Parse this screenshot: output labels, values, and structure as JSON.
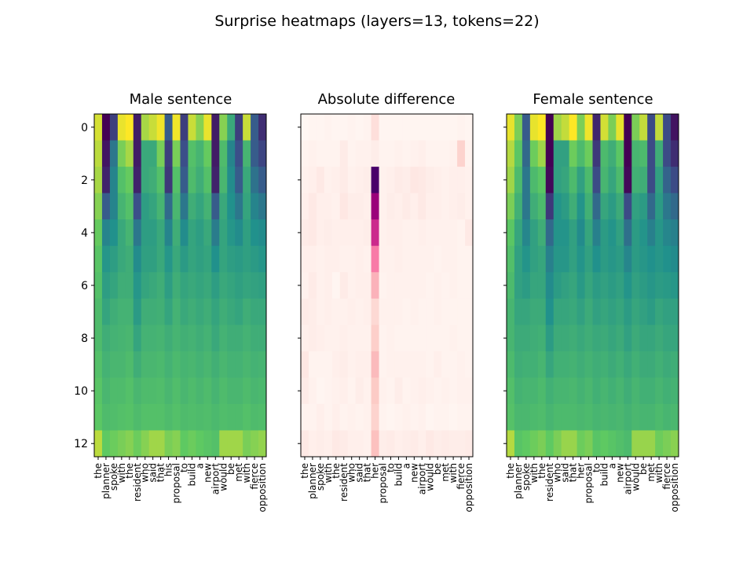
{
  "figure": {
    "suptitle": "Surprise heatmaps (layers=13, tokens=22)"
  },
  "chart_data": [
    {
      "type": "heatmap",
      "title": "Male sentence",
      "colormap": "viridis",
      "xticklabels": [
        "the",
        "planner",
        "spoke",
        "with",
        "the",
        "resident",
        "who",
        "said",
        "that",
        "his",
        "proposal",
        "to",
        "build",
        "a",
        "new",
        "airport",
        "would",
        "be",
        "met",
        "with",
        "fierce",
        "opposition"
      ],
      "yticks": [
        0,
        2,
        4,
        6,
        8,
        10,
        12
      ],
      "n_rows": 13,
      "n_cols": 22,
      "values": [
        [
          0.92,
          0.02,
          0.2,
          0.95,
          0.98,
          0.1,
          0.85,
          0.9,
          0.96,
          0.3,
          0.96,
          0.2,
          0.9,
          0.8,
          0.95,
          0.1,
          0.8,
          0.6,
          0.2,
          0.9,
          0.3,
          0.15
        ],
        [
          0.88,
          0.08,
          0.4,
          0.78,
          0.85,
          0.1,
          0.6,
          0.6,
          0.78,
          0.2,
          0.78,
          0.25,
          0.7,
          0.65,
          0.75,
          0.1,
          0.68,
          0.45,
          0.25,
          0.65,
          0.3,
          0.22
        ],
        [
          0.85,
          0.12,
          0.45,
          0.7,
          0.75,
          0.12,
          0.6,
          0.62,
          0.7,
          0.18,
          0.7,
          0.3,
          0.68,
          0.62,
          0.7,
          0.12,
          0.66,
          0.48,
          0.3,
          0.6,
          0.38,
          0.3
        ],
        [
          0.8,
          0.3,
          0.45,
          0.65,
          0.7,
          0.25,
          0.55,
          0.58,
          0.65,
          0.35,
          0.66,
          0.4,
          0.62,
          0.58,
          0.64,
          0.3,
          0.6,
          0.5,
          0.4,
          0.58,
          0.45,
          0.4
        ],
        [
          0.75,
          0.45,
          0.5,
          0.6,
          0.65,
          0.4,
          0.55,
          0.55,
          0.6,
          0.45,
          0.62,
          0.48,
          0.58,
          0.55,
          0.6,
          0.42,
          0.58,
          0.52,
          0.48,
          0.56,
          0.5,
          0.48
        ],
        [
          0.72,
          0.52,
          0.55,
          0.6,
          0.62,
          0.48,
          0.56,
          0.56,
          0.6,
          0.52,
          0.6,
          0.54,
          0.58,
          0.56,
          0.58,
          0.5,
          0.58,
          0.55,
          0.54,
          0.56,
          0.54,
          0.52
        ],
        [
          0.7,
          0.55,
          0.58,
          0.62,
          0.62,
          0.52,
          0.58,
          0.6,
          0.62,
          0.55,
          0.62,
          0.58,
          0.6,
          0.58,
          0.6,
          0.55,
          0.6,
          0.58,
          0.56,
          0.58,
          0.57,
          0.56
        ],
        [
          0.68,
          0.58,
          0.62,
          0.64,
          0.64,
          0.54,
          0.62,
          0.62,
          0.63,
          0.58,
          0.64,
          0.6,
          0.62,
          0.6,
          0.62,
          0.58,
          0.62,
          0.6,
          0.58,
          0.62,
          0.6,
          0.6
        ],
        [
          0.68,
          0.62,
          0.64,
          0.65,
          0.66,
          0.58,
          0.64,
          0.64,
          0.65,
          0.62,
          0.65,
          0.63,
          0.64,
          0.62,
          0.64,
          0.6,
          0.64,
          0.62,
          0.62,
          0.64,
          0.62,
          0.62
        ],
        [
          0.7,
          0.64,
          0.66,
          0.66,
          0.68,
          0.62,
          0.66,
          0.66,
          0.67,
          0.64,
          0.67,
          0.65,
          0.66,
          0.64,
          0.66,
          0.63,
          0.66,
          0.64,
          0.64,
          0.66,
          0.64,
          0.65
        ],
        [
          0.72,
          0.66,
          0.68,
          0.68,
          0.7,
          0.66,
          0.68,
          0.68,
          0.69,
          0.66,
          0.69,
          0.66,
          0.68,
          0.66,
          0.68,
          0.65,
          0.68,
          0.66,
          0.66,
          0.68,
          0.66,
          0.67
        ],
        [
          0.73,
          0.68,
          0.69,
          0.7,
          0.71,
          0.68,
          0.7,
          0.7,
          0.7,
          0.68,
          0.7,
          0.68,
          0.69,
          0.68,
          0.69,
          0.67,
          0.69,
          0.68,
          0.68,
          0.7,
          0.68,
          0.69
        ],
        [
          0.88,
          0.74,
          0.76,
          0.78,
          0.8,
          0.76,
          0.8,
          0.84,
          0.84,
          0.78,
          0.8,
          0.74,
          0.76,
          0.74,
          0.72,
          0.7,
          0.84,
          0.84,
          0.84,
          0.78,
          0.8,
          0.82
        ]
      ]
    },
    {
      "type": "heatmap",
      "title": "Absolute difference",
      "colormap": "RdPu",
      "xticklabels": [
        "the",
        "planner",
        "spoke",
        "with",
        "the",
        "resident",
        "who",
        "said",
        "that",
        "her",
        "proposal",
        "to",
        "build",
        "a",
        "new",
        "airport",
        "would",
        "be",
        "met",
        "with",
        "fierce",
        "opposition"
      ],
      "n_rows": 13,
      "n_cols": 22,
      "values": [
        [
          0.0,
          0.01,
          0.01,
          0.02,
          0.01,
          0.01,
          0.02,
          0.01,
          0.02,
          0.12,
          0.01,
          0.01,
          0.01,
          0.01,
          0.01,
          0.01,
          0.01,
          0.01,
          0.01,
          0.01,
          0.02,
          0.01
        ],
        [
          0.02,
          0.03,
          0.02,
          0.02,
          0.02,
          0.06,
          0.02,
          0.03,
          0.03,
          0.05,
          0.02,
          0.02,
          0.03,
          0.02,
          0.03,
          0.04,
          0.02,
          0.02,
          0.02,
          0.03,
          0.18,
          0.02
        ],
        [
          0.03,
          0.04,
          0.07,
          0.03,
          0.04,
          0.06,
          0.03,
          0.04,
          0.05,
          1.0,
          0.03,
          0.04,
          0.06,
          0.05,
          0.08,
          0.07,
          0.05,
          0.04,
          0.03,
          0.04,
          0.04,
          0.03
        ],
        [
          0.04,
          0.07,
          0.04,
          0.04,
          0.03,
          0.08,
          0.05,
          0.05,
          0.04,
          0.8,
          0.03,
          0.05,
          0.04,
          0.06,
          0.04,
          0.07,
          0.04,
          0.04,
          0.03,
          0.04,
          0.05,
          0.03
        ],
        [
          0.06,
          0.07,
          0.04,
          0.05,
          0.04,
          0.04,
          0.04,
          0.04,
          0.05,
          0.65,
          0.03,
          0.04,
          0.04,
          0.03,
          0.03,
          0.04,
          0.03,
          0.03,
          0.03,
          0.03,
          0.02,
          0.07
        ],
        [
          0.04,
          0.04,
          0.03,
          0.04,
          0.04,
          0.03,
          0.03,
          0.04,
          0.03,
          0.45,
          0.03,
          0.03,
          0.04,
          0.03,
          0.03,
          0.03,
          0.03,
          0.02,
          0.03,
          0.03,
          0.02,
          0.02
        ],
        [
          0.03,
          0.06,
          0.03,
          0.04,
          0.01,
          0.06,
          0.03,
          0.04,
          0.04,
          0.3,
          0.02,
          0.03,
          0.03,
          0.03,
          0.03,
          0.03,
          0.02,
          0.03,
          0.02,
          0.03,
          0.02,
          0.02
        ],
        [
          0.06,
          0.05,
          0.03,
          0.04,
          0.03,
          0.03,
          0.04,
          0.03,
          0.04,
          0.15,
          0.03,
          0.03,
          0.03,
          0.02,
          0.03,
          0.02,
          0.02,
          0.03,
          0.02,
          0.02,
          0.02,
          0.02
        ],
        [
          0.04,
          0.05,
          0.04,
          0.03,
          0.03,
          0.04,
          0.03,
          0.03,
          0.03,
          0.2,
          0.02,
          0.03,
          0.02,
          0.02,
          0.02,
          0.02,
          0.02,
          0.02,
          0.02,
          0.03,
          0.02,
          0.02
        ],
        [
          0.08,
          0.02,
          0.02,
          0.02,
          0.04,
          0.05,
          0.03,
          0.04,
          0.04,
          0.28,
          0.02,
          0.03,
          0.03,
          0.03,
          0.03,
          0.03,
          0.02,
          0.04,
          0.02,
          0.02,
          0.03,
          0.02
        ],
        [
          0.06,
          0.03,
          0.01,
          0.02,
          0.03,
          0.04,
          0.02,
          0.05,
          0.03,
          0.22,
          0.03,
          0.02,
          0.05,
          0.02,
          0.03,
          0.04,
          0.03,
          0.02,
          0.03,
          0.02,
          0.03,
          0.03
        ],
        [
          0.02,
          0.02,
          0.04,
          0.02,
          0.04,
          0.02,
          0.03,
          0.02,
          0.03,
          0.18,
          0.02,
          0.01,
          0.02,
          0.03,
          0.02,
          0.03,
          0.01,
          0.02,
          0.02,
          0.01,
          0.02,
          0.02
        ],
        [
          0.07,
          0.04,
          0.05,
          0.04,
          0.07,
          0.06,
          0.04,
          0.04,
          0.03,
          0.26,
          0.05,
          0.06,
          0.04,
          0.05,
          0.06,
          0.04,
          0.07,
          0.05,
          0.06,
          0.05,
          0.05,
          0.06
        ]
      ]
    },
    {
      "type": "heatmap",
      "title": "Female sentence",
      "colormap": "viridis",
      "xticklabels": [
        "the",
        "planner",
        "spoke",
        "with",
        "the",
        "resident",
        "who",
        "said",
        "that",
        "her",
        "proposal",
        "to",
        "build",
        "a",
        "new",
        "airport",
        "would",
        "be",
        "met",
        "with",
        "fierce",
        "opposition"
      ],
      "n_rows": 13,
      "n_cols": 22,
      "values": [
        [
          0.95,
          0.8,
          0.35,
          0.95,
          0.98,
          0.1,
          0.85,
          0.9,
          0.98,
          0.8,
          0.96,
          0.2,
          0.92,
          0.8,
          0.95,
          0.1,
          0.8,
          0.9,
          0.3,
          0.9,
          0.3,
          0.15
        ],
        [
          0.88,
          0.75,
          0.4,
          0.78,
          0.85,
          0.1,
          0.6,
          0.6,
          0.78,
          0.7,
          0.78,
          0.25,
          0.7,
          0.65,
          0.75,
          0.1,
          0.68,
          0.7,
          0.3,
          0.65,
          0.3,
          0.22
        ],
        [
          0.85,
          0.7,
          0.45,
          0.7,
          0.75,
          0.12,
          0.6,
          0.62,
          0.7,
          0.6,
          0.7,
          0.3,
          0.68,
          0.62,
          0.7,
          0.12,
          0.66,
          0.65,
          0.3,
          0.6,
          0.38,
          0.3
        ],
        [
          0.8,
          0.66,
          0.45,
          0.65,
          0.7,
          0.25,
          0.55,
          0.58,
          0.65,
          0.55,
          0.66,
          0.4,
          0.62,
          0.58,
          0.64,
          0.3,
          0.6,
          0.58,
          0.4,
          0.58,
          0.45,
          0.4
        ],
        [
          0.75,
          0.62,
          0.5,
          0.6,
          0.65,
          0.4,
          0.55,
          0.55,
          0.6,
          0.52,
          0.62,
          0.48,
          0.58,
          0.55,
          0.6,
          0.42,
          0.58,
          0.55,
          0.48,
          0.56,
          0.5,
          0.48
        ],
        [
          0.72,
          0.6,
          0.55,
          0.6,
          0.62,
          0.48,
          0.56,
          0.56,
          0.6,
          0.55,
          0.6,
          0.54,
          0.58,
          0.56,
          0.58,
          0.5,
          0.58,
          0.56,
          0.54,
          0.56,
          0.54,
          0.52
        ],
        [
          0.7,
          0.6,
          0.58,
          0.62,
          0.62,
          0.52,
          0.58,
          0.6,
          0.62,
          0.57,
          0.62,
          0.58,
          0.6,
          0.58,
          0.6,
          0.55,
          0.6,
          0.58,
          0.56,
          0.58,
          0.57,
          0.56
        ],
        [
          0.68,
          0.62,
          0.62,
          0.64,
          0.64,
          0.54,
          0.62,
          0.62,
          0.63,
          0.6,
          0.64,
          0.6,
          0.62,
          0.6,
          0.62,
          0.58,
          0.62,
          0.6,
          0.58,
          0.62,
          0.6,
          0.6
        ],
        [
          0.68,
          0.64,
          0.64,
          0.65,
          0.66,
          0.58,
          0.64,
          0.64,
          0.65,
          0.63,
          0.65,
          0.63,
          0.64,
          0.62,
          0.64,
          0.6,
          0.64,
          0.62,
          0.62,
          0.64,
          0.62,
          0.62
        ],
        [
          0.7,
          0.65,
          0.66,
          0.66,
          0.68,
          0.62,
          0.66,
          0.66,
          0.67,
          0.65,
          0.67,
          0.65,
          0.66,
          0.64,
          0.66,
          0.63,
          0.66,
          0.64,
          0.64,
          0.66,
          0.64,
          0.65
        ],
        [
          0.72,
          0.67,
          0.68,
          0.68,
          0.7,
          0.66,
          0.68,
          0.68,
          0.69,
          0.67,
          0.69,
          0.66,
          0.68,
          0.66,
          0.68,
          0.65,
          0.68,
          0.66,
          0.66,
          0.68,
          0.66,
          0.67
        ],
        [
          0.73,
          0.69,
          0.69,
          0.7,
          0.71,
          0.68,
          0.7,
          0.7,
          0.7,
          0.69,
          0.7,
          0.68,
          0.69,
          0.68,
          0.69,
          0.67,
          0.69,
          0.68,
          0.68,
          0.7,
          0.68,
          0.69
        ],
        [
          0.88,
          0.74,
          0.76,
          0.78,
          0.8,
          0.76,
          0.8,
          0.84,
          0.84,
          0.78,
          0.8,
          0.74,
          0.76,
          0.74,
          0.72,
          0.7,
          0.84,
          0.84,
          0.84,
          0.78,
          0.8,
          0.82
        ]
      ]
    }
  ]
}
